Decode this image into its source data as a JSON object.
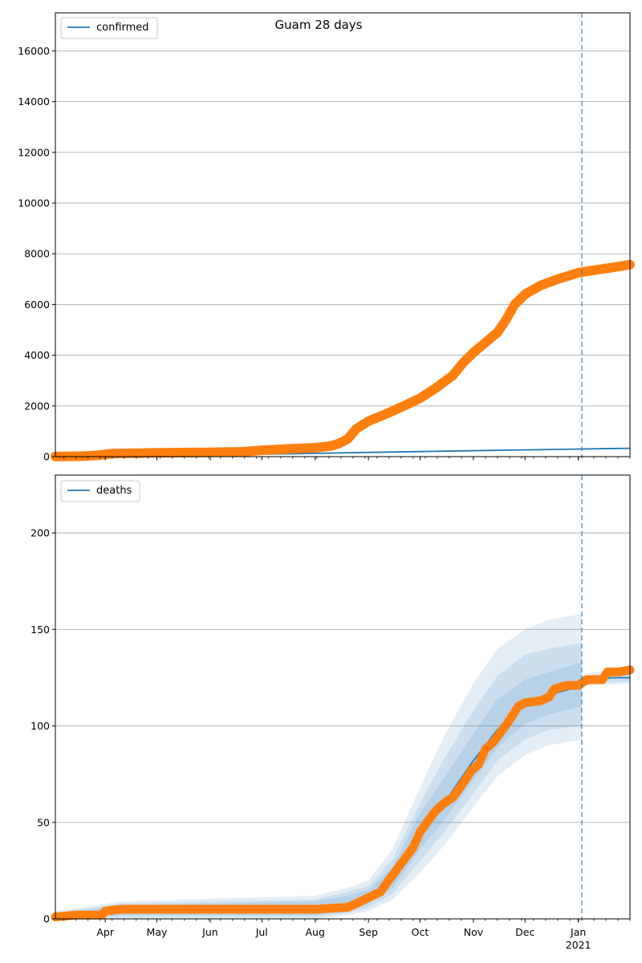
{
  "title": "Guam 28 days",
  "colors": {
    "model": "#1f77b4",
    "observed": "#ff7f0e",
    "band": "#1f77b4",
    "forecast_line": "#1f77b4",
    "grid": "#b0b0b0"
  },
  "x_tick_labels": [
    "Apr",
    "May",
    "Jun",
    "Jul",
    "Aug",
    "Sep",
    "Oct",
    "Nov",
    "Dec",
    "Jan"
  ],
  "x_year_label": "2021",
  "chart_data": [
    {
      "type": "line",
      "title": "Guam 28 days",
      "legend": "confirmed",
      "legend_position": "top-left",
      "grid": "horizontal",
      "xlim": [
        "2020-03-03",
        "2021-01-31"
      ],
      "ylim": [
        0,
        17500
      ],
      "y_ticks": [
        0,
        2000,
        4000,
        6000,
        8000,
        10000,
        12000,
        14000,
        16000
      ],
      "forecast_start": "2021-01-03",
      "series": [
        {
          "name": "confirmed",
          "style": "line",
          "points": [
            [
              "2020-03-03",
              0
            ],
            [
              "2020-06-01",
              60
            ],
            [
              "2020-08-01",
              130
            ],
            [
              "2020-10-01",
              200
            ],
            [
              "2020-12-01",
              265
            ],
            [
              "2021-01-03",
              300
            ],
            [
              "2021-01-31",
              330
            ]
          ]
        },
        {
          "style": "markers",
          "points": [
            [
              "2020-03-03",
              5
            ],
            [
              "2020-03-20",
              20
            ],
            [
              "2020-03-28",
              55
            ],
            [
              "2020-04-05",
              120
            ],
            [
              "2020-05-01",
              150
            ],
            [
              "2020-06-01",
              170
            ],
            [
              "2020-06-20",
              190
            ],
            [
              "2020-07-01",
              250
            ],
            [
              "2020-07-15",
              300
            ],
            [
              "2020-08-01",
              350
            ],
            [
              "2020-08-10",
              420
            ],
            [
              "2020-08-15",
              520
            ],
            [
              "2020-08-20",
              700
            ],
            [
              "2020-08-25",
              1100
            ],
            [
              "2020-09-01",
              1400
            ],
            [
              "2020-09-10",
              1650
            ],
            [
              "2020-09-20",
              1950
            ],
            [
              "2020-10-01",
              2300
            ],
            [
              "2020-10-10",
              2700
            ],
            [
              "2020-10-20",
              3200
            ],
            [
              "2020-10-26",
              3700
            ],
            [
              "2020-11-01",
              4100
            ],
            [
              "2020-11-08",
              4500
            ],
            [
              "2020-11-15",
              4900
            ],
            [
              "2020-11-20",
              5400
            ],
            [
              "2020-11-25",
              6000
            ],
            [
              "2020-12-01",
              6400
            ],
            [
              "2020-12-10",
              6750
            ],
            [
              "2020-12-20",
              7000
            ],
            [
              "2021-01-01",
              7250
            ],
            [
              "2021-01-10",
              7350
            ],
            [
              "2021-01-20",
              7450
            ],
            [
              "2021-01-31",
              7570
            ]
          ]
        }
      ]
    },
    {
      "type": "line",
      "legend": "deaths",
      "legend_position": "top-left",
      "grid": "horizontal",
      "xlim": [
        "2020-03-03",
        "2021-01-31"
      ],
      "ylim": [
        0,
        230
      ],
      "y_ticks": [
        0,
        50,
        100,
        150,
        200
      ],
      "forecast_start": "2021-01-03",
      "series": [
        {
          "name": "deaths",
          "style": "line",
          "points": [
            [
              "2020-03-03",
              1
            ],
            [
              "2020-03-10",
              2
            ],
            [
              "2020-03-18",
              3
            ],
            [
              "2020-04-01",
              4
            ],
            [
              "2020-04-10",
              5
            ],
            [
              "2020-08-15",
              7
            ],
            [
              "2020-08-25",
              8
            ],
            [
              "2020-09-01",
              11
            ],
            [
              "2020-09-10",
              16
            ],
            [
              "2020-09-20",
              28
            ],
            [
              "2020-10-01",
              46
            ],
            [
              "2020-10-15",
              60
            ],
            [
              "2020-11-01",
              82
            ],
            [
              "2020-11-15",
              98
            ],
            [
              "2020-12-01",
              111
            ],
            [
              "2020-12-15",
              116
            ],
            [
              "2021-01-03",
              121
            ],
            [
              "2021-01-10",
              123
            ],
            [
              "2021-01-20",
              125
            ],
            [
              "2021-01-31",
              125
            ]
          ]
        },
        {
          "style": "markers",
          "points": [
            [
              "2020-03-03",
              1
            ],
            [
              "2020-03-15",
              2
            ],
            [
              "2020-03-30",
              2
            ],
            [
              "2020-04-01",
              4
            ],
            [
              "2020-04-10",
              5
            ],
            [
              "2020-06-01",
              5
            ],
            [
              "2020-08-01",
              5
            ],
            [
              "2020-08-20",
              6
            ],
            [
              "2020-08-25",
              8
            ],
            [
              "2020-09-01",
              11
            ],
            [
              "2020-09-08",
              14
            ],
            [
              "2020-09-12",
              19
            ],
            [
              "2020-09-17",
              25
            ],
            [
              "2020-09-22",
              31
            ],
            [
              "2020-09-27",
              37
            ],
            [
              "2020-10-01",
              45
            ],
            [
              "2020-10-05",
              50
            ],
            [
              "2020-10-10",
              56
            ],
            [
              "2020-10-15",
              60
            ],
            [
              "2020-10-20",
              63
            ],
            [
              "2020-10-25",
              69
            ],
            [
              "2020-10-31",
              77
            ],
            [
              "2020-11-04",
              80
            ],
            [
              "2020-11-08",
              88
            ],
            [
              "2020-11-13",
              92
            ],
            [
              "2020-11-18",
              98
            ],
            [
              "2020-11-22",
              103
            ],
            [
              "2020-11-27",
              110
            ],
            [
              "2020-12-01",
              112
            ],
            [
              "2020-12-10",
              113
            ],
            [
              "2020-12-15",
              115
            ],
            [
              "2020-12-18",
              119
            ],
            [
              "2020-12-25",
              121
            ],
            [
              "2021-01-01",
              121
            ],
            [
              "2021-01-06",
              124
            ],
            [
              "2021-01-15",
              124
            ],
            [
              "2021-01-18",
              128
            ],
            [
              "2021-01-25",
              128
            ],
            [
              "2021-01-31",
              129
            ]
          ]
        },
        {
          "style": "bands",
          "bands": [
            {
              "opacity": 0.12,
              "points": [
                [
                  "2020-03-03",
                  0,
                  4
                ],
                [
                  "2020-04-10",
                  0,
                  9
                ],
                [
                  "2020-08-01",
                  0,
                  12
                ],
                [
                  "2020-08-20",
                  2,
                  16
                ],
                [
                  "2020-09-01",
                  4,
                  20
                ],
                [
                  "2020-09-15",
                  10,
                  36
                ],
                [
                  "2020-10-01",
                  24,
                  68
                ],
                [
                  "2020-10-15",
                  38,
                  95
                ],
                [
                  "2020-11-01",
                  58,
                  122
                ],
                [
                  "2020-11-15",
                  74,
                  140
                ],
                [
                  "2020-12-01",
                  85,
                  150
                ],
                [
                  "2020-12-15",
                  90,
                  155
                ],
                [
                  "2021-01-03",
                  93,
                  158
                ]
              ]
            },
            {
              "opacity": 0.12,
              "points": [
                [
                  "2020-03-03",
                  0,
                  3
                ],
                [
                  "2020-04-10",
                  1,
                  8
                ],
                [
                  "2020-08-01",
                  1,
                  10
                ],
                [
                  "2020-08-20",
                  3,
                  14
                ],
                [
                  "2020-09-01",
                  6,
                  17
                ],
                [
                  "2020-09-15",
                  13,
                  31
                ],
                [
                  "2020-10-01",
                  30,
                  60
                ],
                [
                  "2020-10-15",
                  45,
                  83
                ],
                [
                  "2020-11-01",
                  65,
                  108
                ],
                [
                  "2020-11-15",
                  82,
                  126
                ],
                [
                  "2020-12-01",
                  93,
                  137
                ],
                [
                  "2020-12-15",
                  98,
                  140
                ],
                [
                  "2021-01-03",
                  100,
                  143
                ]
              ]
            },
            {
              "opacity": 0.12,
              "points": [
                [
                  "2020-03-03",
                  0,
                  2
                ],
                [
                  "2020-04-10",
                  2,
                  7
                ],
                [
                  "2020-08-01",
                  2,
                  9
                ],
                [
                  "2020-08-20",
                  4,
                  12
                ],
                [
                  "2020-09-01",
                  8,
                  15
                ],
                [
                  "2020-09-15",
                  16,
                  27
                ],
                [
                  "2020-10-01",
                  36,
                  55
                ],
                [
                  "2020-10-15",
                  51,
                  73
                ],
                [
                  "2020-11-01",
                  72,
                  96
                ],
                [
                  "2020-11-15",
                  89,
                  114
                ],
                [
                  "2020-12-01",
                  101,
                  124
                ],
                [
                  "2020-12-15",
                  106,
                  128
                ],
                [
                  "2021-01-03",
                  110,
                  133
                ]
              ]
            },
            {
              "opacity": 0.12,
              "points": [
                [
                  "2021-01-03",
                  121,
                  127
                ],
                [
                  "2021-01-31",
                  122,
                  130
                ]
              ]
            },
            {
              "opacity": 0.12,
              "points": [
                [
                  "2021-01-03",
                  122,
                  126
                ],
                [
                  "2021-01-31",
                  123,
                  128
                ]
              ]
            }
          ]
        }
      ]
    }
  ]
}
